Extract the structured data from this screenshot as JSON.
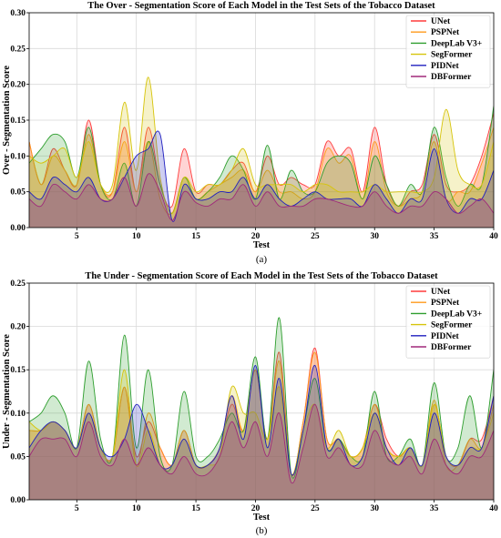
{
  "chart_data": [
    {
      "type": "area",
      "title": "The Over - Segmentation Score of Each Model in the Test Sets of the Tobacco Dataset",
      "xlabel": "Test",
      "ylabel": "Over - Segmentation Score",
      "xlim": [
        1,
        40
      ],
      "ylim": [
        0,
        0.3
      ],
      "xticks": [
        5,
        10,
        15,
        20,
        25,
        30,
        35,
        40
      ],
      "yticks": [
        0.0,
        0.05,
        0.1,
        0.15,
        0.2,
        0.25,
        0.3
      ],
      "ytick_labels": [
        "0.00",
        "0.05",
        "0.10",
        "0.15",
        "0.20",
        "0.25",
        "0.30"
      ],
      "grid": true,
      "legend_position": "top-right",
      "caption": "(a)",
      "x": [
        1,
        2,
        3,
        4,
        5,
        6,
        7,
        8,
        9,
        10,
        11,
        12,
        13,
        14,
        15,
        16,
        17,
        18,
        19,
        20,
        21,
        22,
        23,
        24,
        25,
        26,
        27,
        28,
        29,
        30,
        31,
        32,
        33,
        34,
        35,
        36,
        37,
        38,
        39,
        40
      ],
      "series": [
        {
          "name": "UNet",
          "color": "#ff3b3b",
          "values": [
            0.12,
            0.06,
            0.11,
            0.08,
            0.06,
            0.15,
            0.06,
            0.05,
            0.14,
            0.05,
            0.14,
            0.06,
            0.03,
            0.11,
            0.05,
            0.06,
            0.06,
            0.08,
            0.09,
            0.05,
            0.1,
            0.06,
            0.07,
            0.06,
            0.06,
            0.12,
            0.1,
            0.11,
            0.05,
            0.14,
            0.06,
            0.03,
            0.05,
            0.06,
            0.13,
            0.06,
            0.05,
            0.06,
            0.1,
            0.16
          ]
        },
        {
          "name": "PSPNet",
          "color": "#ff9a1a",
          "values": [
            0.12,
            0.06,
            0.1,
            0.08,
            0.06,
            0.13,
            0.06,
            0.05,
            0.12,
            0.05,
            0.12,
            0.04,
            0.02,
            0.07,
            0.04,
            0.05,
            0.06,
            0.07,
            0.08,
            0.05,
            0.08,
            0.05,
            0.05,
            0.04,
            0.05,
            0.11,
            0.09,
            0.1,
            0.04,
            0.12,
            0.05,
            0.03,
            0.04,
            0.05,
            0.12,
            0.04,
            0.05,
            0.05,
            0.09,
            0.14
          ]
        },
        {
          "name": "DeepLab V3+",
          "color": "#2e9e2e",
          "values": [
            0.09,
            0.11,
            0.13,
            0.12,
            0.07,
            0.14,
            0.06,
            0.04,
            0.09,
            0.03,
            0.12,
            0.06,
            0.02,
            0.07,
            0.04,
            0.05,
            0.07,
            0.1,
            0.08,
            0.04,
            0.115,
            0.04,
            0.08,
            0.05,
            0.05,
            0.09,
            0.1,
            0.09,
            0.04,
            0.1,
            0.06,
            0.03,
            0.06,
            0.05,
            0.14,
            0.07,
            0.03,
            0.06,
            0.06,
            0.17
          ]
        },
        {
          "name": "SegFormer",
          "color": "#d6c40a",
          "values": [
            0.1,
            0.09,
            0.1,
            0.11,
            0.07,
            0.12,
            0.06,
            0.06,
            0.175,
            0.08,
            0.21,
            0.07,
            0.02,
            0.07,
            0.05,
            0.06,
            0.06,
            0.08,
            0.11,
            0.06,
            0.06,
            0.06,
            0.06,
            0.05,
            0.06,
            0.06,
            0.05,
            0.05,
            0.05,
            0.06,
            0.05,
            0.05,
            0.05,
            0.05,
            0.07,
            0.165,
            0.08,
            0.06,
            0.06,
            0.12
          ]
        },
        {
          "name": "PIDNet",
          "color": "#1f1fbf",
          "values": [
            0.05,
            0.04,
            0.07,
            0.06,
            0.05,
            0.07,
            0.04,
            0.04,
            0.07,
            0.1,
            0.11,
            0.13,
            0.01,
            0.06,
            0.04,
            0.04,
            0.05,
            0.05,
            0.07,
            0.04,
            0.06,
            0.04,
            0.03,
            0.04,
            0.05,
            0.04,
            0.04,
            0.04,
            0.03,
            0.06,
            0.04,
            0.02,
            0.04,
            0.04,
            0.11,
            0.04,
            0.02,
            0.04,
            0.04,
            0.08
          ]
        },
        {
          "name": "DBFormer",
          "color": "#a0287a",
          "values": [
            0.04,
            0.03,
            0.06,
            0.05,
            0.04,
            0.06,
            0.04,
            0.04,
            0.07,
            0.03,
            0.075,
            0.05,
            0.01,
            0.05,
            0.035,
            0.03,
            0.04,
            0.04,
            0.06,
            0.03,
            0.05,
            0.03,
            0.03,
            0.03,
            0.04,
            0.04,
            0.035,
            0.03,
            0.03,
            0.05,
            0.03,
            0.02,
            0.03,
            0.03,
            0.05,
            0.04,
            0.02,
            0.03,
            0.04,
            0.02
          ]
        }
      ]
    },
    {
      "type": "area",
      "title": "The Under - Segmentation Score of Each Model in the Test Sets of the Tobacco Dataset",
      "xlabel": "Test",
      "ylabel": "Under - Segmentation Score",
      "xlim": [
        1,
        40
      ],
      "ylim": [
        0,
        0.25
      ],
      "xticks": [
        5,
        10,
        15,
        20,
        25,
        30,
        35,
        40
      ],
      "yticks": [
        0.0,
        0.05,
        0.1,
        0.15,
        0.2,
        0.25
      ],
      "ytick_labels": [
        "0.00",
        "0.05",
        "0.10",
        "0.15",
        "0.20",
        "0.25"
      ],
      "grid": true,
      "legend_position": "top-right",
      "caption": "(b)",
      "x": [
        1,
        2,
        3,
        4,
        5,
        6,
        7,
        8,
        9,
        10,
        11,
        12,
        13,
        14,
        15,
        16,
        17,
        18,
        19,
        20,
        21,
        22,
        23,
        24,
        25,
        26,
        27,
        28,
        29,
        30,
        31,
        32,
        33,
        34,
        35,
        36,
        37,
        38,
        39,
        40
      ],
      "series": [
        {
          "name": "UNet",
          "color": "#ff3b3b",
          "values": [
            0.08,
            0.08,
            0.09,
            0.08,
            0.06,
            0.11,
            0.06,
            0.05,
            0.13,
            0.05,
            0.09,
            0.06,
            0.04,
            0.08,
            0.04,
            0.04,
            0.06,
            0.11,
            0.08,
            0.15,
            0.07,
            0.17,
            0.03,
            0.09,
            0.175,
            0.07,
            0.07,
            0.05,
            0.06,
            0.11,
            0.07,
            0.05,
            0.06,
            0.04,
            0.11,
            0.05,
            0.04,
            0.07,
            0.07,
            0.12
          ]
        },
        {
          "name": "PSPNet",
          "color": "#ff9a1a",
          "values": [
            0.08,
            0.08,
            0.09,
            0.08,
            0.06,
            0.11,
            0.06,
            0.05,
            0.13,
            0.04,
            0.1,
            0.06,
            0.04,
            0.08,
            0.04,
            0.04,
            0.06,
            0.12,
            0.08,
            0.15,
            0.07,
            0.16,
            0.03,
            0.09,
            0.17,
            0.07,
            0.07,
            0.05,
            0.06,
            0.11,
            0.06,
            0.05,
            0.06,
            0.04,
            0.115,
            0.04,
            0.04,
            0.07,
            0.06,
            0.11
          ]
        },
        {
          "name": "DeepLab V3+",
          "color": "#2e9e2e",
          "values": [
            0.09,
            0.1,
            0.12,
            0.1,
            0.06,
            0.16,
            0.07,
            0.05,
            0.19,
            0.06,
            0.15,
            0.05,
            0.04,
            0.125,
            0.05,
            0.05,
            0.07,
            0.1,
            0.08,
            0.165,
            0.07,
            0.21,
            0.03,
            0.08,
            0.14,
            0.06,
            0.07,
            0.05,
            0.05,
            0.125,
            0.05,
            0.05,
            0.07,
            0.04,
            0.135,
            0.05,
            0.06,
            0.12,
            0.06,
            0.15
          ]
        },
        {
          "name": "SegFormer",
          "color": "#d6c40a",
          "values": [
            0.09,
            0.08,
            0.09,
            0.08,
            0.06,
            0.1,
            0.06,
            0.05,
            0.15,
            0.04,
            0.08,
            0.04,
            0.04,
            0.07,
            0.04,
            0.04,
            0.05,
            0.13,
            0.1,
            0.1,
            0.07,
            0.13,
            0.03,
            0.08,
            0.11,
            0.06,
            0.08,
            0.05,
            0.06,
            0.1,
            0.06,
            0.05,
            0.06,
            0.04,
            0.11,
            0.05,
            0.04,
            0.06,
            0.06,
            0.1
          ]
        },
        {
          "name": "PIDNet",
          "color": "#1f1fbf",
          "values": [
            0.06,
            0.08,
            0.09,
            0.08,
            0.06,
            0.1,
            0.06,
            0.05,
            0.07,
            0.11,
            0.08,
            0.04,
            0.04,
            0.07,
            0.04,
            0.04,
            0.06,
            0.12,
            0.07,
            0.155,
            0.06,
            0.14,
            0.03,
            0.08,
            0.155,
            0.06,
            0.07,
            0.04,
            0.05,
            0.1,
            0.06,
            0.04,
            0.06,
            0.04,
            0.1,
            0.05,
            0.04,
            0.06,
            0.06,
            0.12
          ]
        },
        {
          "name": "DBFormer",
          "color": "#a0287a",
          "values": [
            0.05,
            0.07,
            0.07,
            0.07,
            0.05,
            0.09,
            0.05,
            0.04,
            0.07,
            0.04,
            0.06,
            0.04,
            0.03,
            0.05,
            0.03,
            0.03,
            0.05,
            0.09,
            0.06,
            0.09,
            0.05,
            0.1,
            0.02,
            0.06,
            0.11,
            0.05,
            0.06,
            0.04,
            0.04,
            0.08,
            0.05,
            0.04,
            0.05,
            0.03,
            0.07,
            0.04,
            0.03,
            0.05,
            0.05,
            0.08
          ]
        }
      ]
    }
  ]
}
